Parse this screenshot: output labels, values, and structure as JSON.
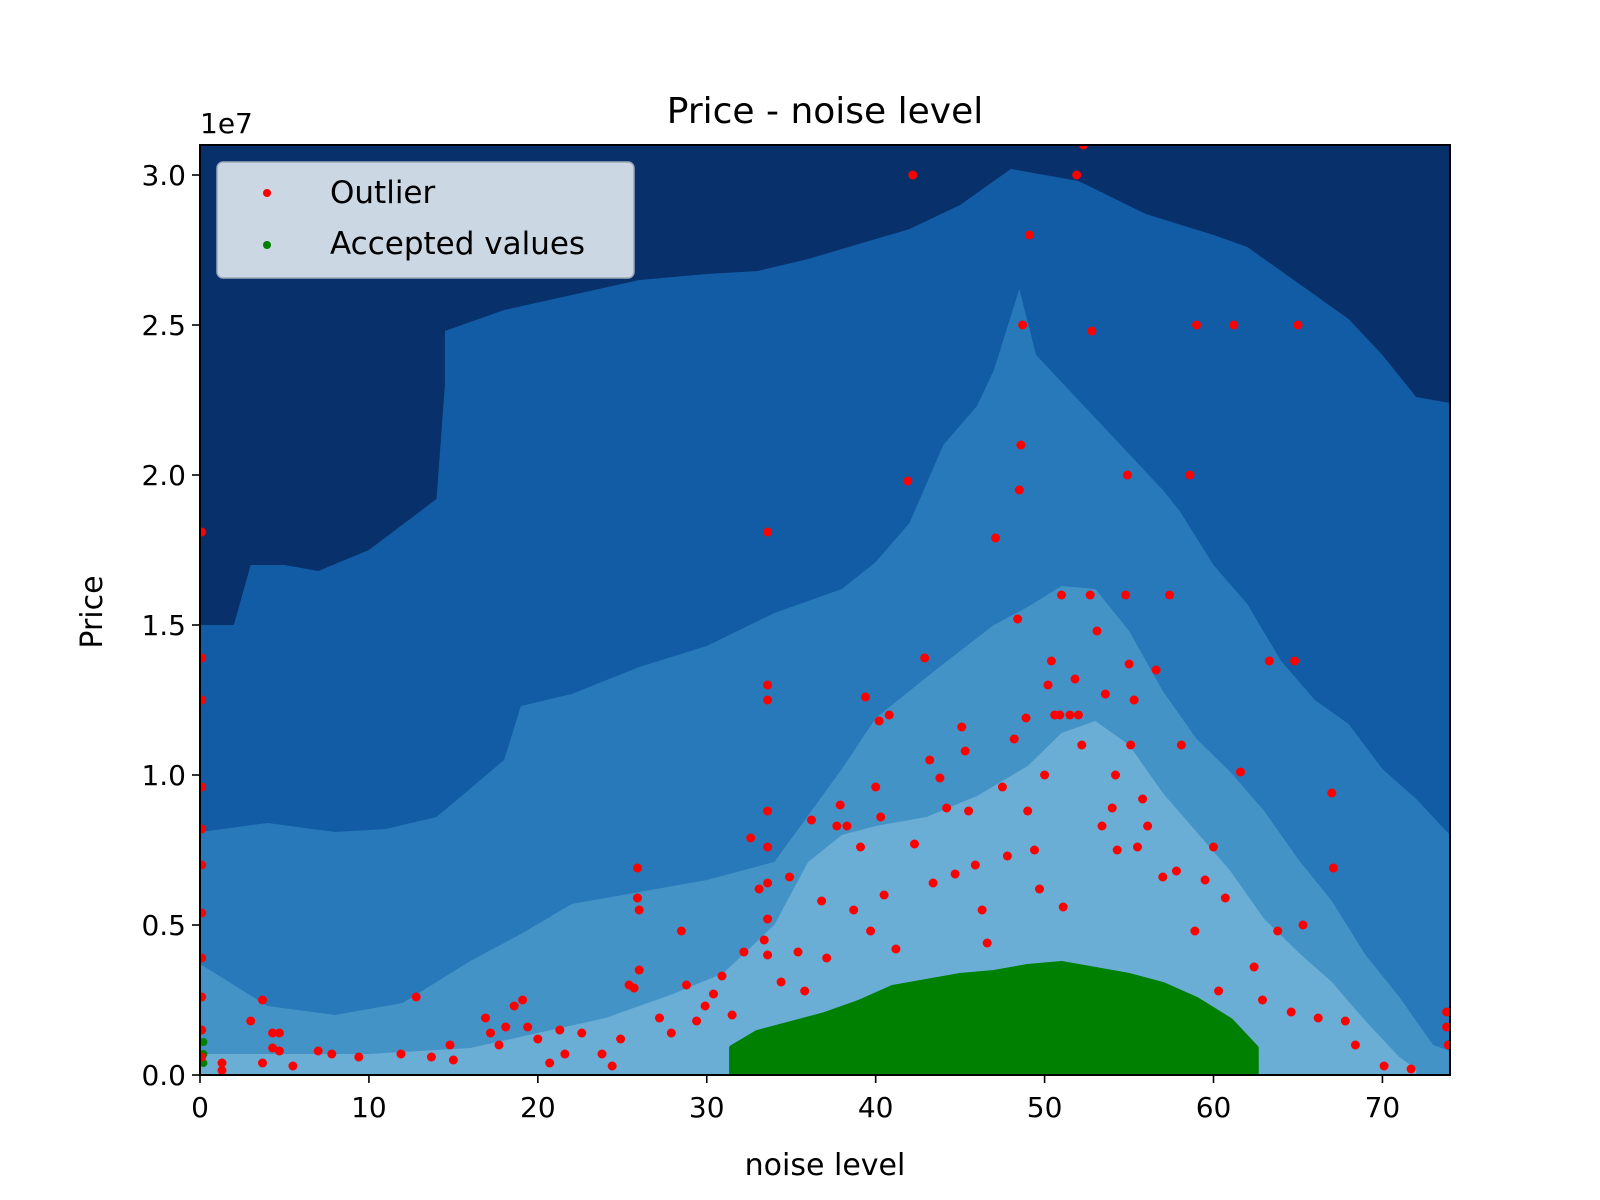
{
  "chart_data": {
    "type": "scatter",
    "title": "Price - noise level",
    "xlabel": "noise level",
    "ylabel": "Price",
    "y_offset_label": "1e7",
    "xlim": [
      0,
      74
    ],
    "ylim": [
      0,
      31000000
    ],
    "xticks": [
      0,
      10,
      20,
      30,
      40,
      50,
      60,
      70
    ],
    "xtick_labels": [
      "0",
      "10",
      "20",
      "30",
      "40",
      "50",
      "60",
      "70"
    ],
    "yticks": [
      0,
      5000000,
      10000000,
      15000000,
      20000000,
      25000000,
      30000000
    ],
    "ytick_labels": [
      "0.0",
      "0.5",
      "1.0",
      "1.5",
      "2.0",
      "2.5",
      "3.0"
    ],
    "grid": false,
    "legend_position": "top-left",
    "background": "filled density contour in blue shades",
    "contour_levels": [
      {
        "max_price": 30000000,
        "color": "#08306b"
      },
      {
        "max_price": 24000000,
        "color": "#115ca5"
      },
      {
        "max_price": 18000000,
        "color": "#2879b9"
      },
      {
        "max_price": 12000000,
        "color": "#4493c7"
      },
      {
        "max_price": 6000000,
        "color": "#6aaed6"
      }
    ],
    "series": [
      {
        "name": "Outlier",
        "color": "#ff0000",
        "points": [
          [
            0.1,
            18100000
          ],
          [
            0.1,
            13900000
          ],
          [
            0.1,
            12500000
          ],
          [
            0.1,
            9600000
          ],
          [
            0.1,
            8200000
          ],
          [
            0.1,
            7000000
          ],
          [
            0.1,
            5400000
          ],
          [
            0.1,
            3900000
          ],
          [
            0.1,
            2600000
          ],
          [
            0.1,
            1500000
          ],
          [
            0.1,
            600000
          ],
          [
            1.3,
            400000
          ],
          [
            1.3,
            150000
          ],
          [
            3.0,
            1800000
          ],
          [
            3.7,
            2500000
          ],
          [
            3.7,
            400000
          ],
          [
            4.3,
            1400000
          ],
          [
            4.3,
            900000
          ],
          [
            4.7,
            1400000
          ],
          [
            4.7,
            800000
          ],
          [
            5.5,
            300000
          ],
          [
            7.0,
            800000
          ],
          [
            7.8,
            700000
          ],
          [
            9.4,
            600000
          ],
          [
            11.9,
            700000
          ],
          [
            12.8,
            2600000
          ],
          [
            13.7,
            600000
          ],
          [
            14.8,
            1000000
          ],
          [
            15.0,
            500000
          ],
          [
            16.9,
            1900000
          ],
          [
            17.2,
            1400000
          ],
          [
            17.7,
            1000000
          ],
          [
            18.1,
            1600000
          ],
          [
            18.6,
            2300000
          ],
          [
            19.1,
            2500000
          ],
          [
            19.4,
            1600000
          ],
          [
            20.0,
            1200000
          ],
          [
            20.7,
            400000
          ],
          [
            21.3,
            1500000
          ],
          [
            21.6,
            700000
          ],
          [
            22.6,
            1400000
          ],
          [
            23.8,
            700000
          ],
          [
            24.4,
            300000
          ],
          [
            24.9,
            1200000
          ],
          [
            25.4,
            3000000
          ],
          [
            25.7,
            2900000
          ],
          [
            25.9,
            6900000
          ],
          [
            25.9,
            5900000
          ],
          [
            26.0,
            5500000
          ],
          [
            26.0,
            3500000
          ],
          [
            27.2,
            1900000
          ],
          [
            27.9,
            1400000
          ],
          [
            28.5,
            4800000
          ],
          [
            28.8,
            3000000
          ],
          [
            29.4,
            1800000
          ],
          [
            29.9,
            2300000
          ],
          [
            30.4,
            2700000
          ],
          [
            30.9,
            3300000
          ],
          [
            31.5,
            2000000
          ],
          [
            32.2,
            4100000
          ],
          [
            32.6,
            7900000
          ],
          [
            33.1,
            6200000
          ],
          [
            33.4,
            4500000
          ],
          [
            33.6,
            18100000
          ],
          [
            33.6,
            13000000
          ],
          [
            33.6,
            12500000
          ],
          [
            33.6,
            8800000
          ],
          [
            33.6,
            7600000
          ],
          [
            33.6,
            6400000
          ],
          [
            33.6,
            5200000
          ],
          [
            33.6,
            4000000
          ],
          [
            34.4,
            3100000
          ],
          [
            34.9,
            6600000
          ],
          [
            35.4,
            4100000
          ],
          [
            35.8,
            2800000
          ],
          [
            36.2,
            8500000
          ],
          [
            36.8,
            5800000
          ],
          [
            37.1,
            3900000
          ],
          [
            37.7,
            8300000
          ],
          [
            37.9,
            9000000
          ],
          [
            38.3,
            8300000
          ],
          [
            38.7,
            5500000
          ],
          [
            39.1,
            7600000
          ],
          [
            39.4,
            12600000
          ],
          [
            39.7,
            4800000
          ],
          [
            40.0,
            9600000
          ],
          [
            40.2,
            11800000
          ],
          [
            40.3,
            8600000
          ],
          [
            40.5,
            6000000
          ],
          [
            40.8,
            12000000
          ],
          [
            41.2,
            4200000
          ],
          [
            41.9,
            19800000
          ],
          [
            42.2,
            30000000
          ],
          [
            42.3,
            7700000
          ],
          [
            42.9,
            13900000
          ],
          [
            43.2,
            10500000
          ],
          [
            43.4,
            6400000
          ],
          [
            43.8,
            9900000
          ],
          [
            44.2,
            8900000
          ],
          [
            44.7,
            6700000
          ],
          [
            45.1,
            11600000
          ],
          [
            45.3,
            10800000
          ],
          [
            45.5,
            8800000
          ],
          [
            45.9,
            7000000
          ],
          [
            46.3,
            5500000
          ],
          [
            46.6,
            4400000
          ],
          [
            47.1,
            17900000
          ],
          [
            47.5,
            9600000
          ],
          [
            47.8,
            7300000
          ],
          [
            48.2,
            11200000
          ],
          [
            48.4,
            15200000
          ],
          [
            48.5,
            19500000
          ],
          [
            48.6,
            21000000
          ],
          [
            48.7,
            25000000
          ],
          [
            48.9,
            11900000
          ],
          [
            49.0,
            8800000
          ],
          [
            49.1,
            28000000
          ],
          [
            49.4,
            7500000
          ],
          [
            49.7,
            6200000
          ],
          [
            50.0,
            10000000
          ],
          [
            50.2,
            13000000
          ],
          [
            50.4,
            13800000
          ],
          [
            50.6,
            12000000
          ],
          [
            50.9,
            12000000
          ],
          [
            51.0,
            16000000
          ],
          [
            51.1,
            5600000
          ],
          [
            51.5,
            12000000
          ],
          [
            51.8,
            13200000
          ],
          [
            51.9,
            30000000
          ],
          [
            52.0,
            12000000
          ],
          [
            52.2,
            11000000
          ],
          [
            52.3,
            31000000
          ],
          [
            52.7,
            16000000
          ],
          [
            52.8,
            24800000
          ],
          [
            53.1,
            14800000
          ],
          [
            53.4,
            8300000
          ],
          [
            53.6,
            12700000
          ],
          [
            54.0,
            8900000
          ],
          [
            54.2,
            10000000
          ],
          [
            54.3,
            7500000
          ],
          [
            54.8,
            16000000
          ],
          [
            54.9,
            20000000
          ],
          [
            55.0,
            13700000
          ],
          [
            55.1,
            11000000
          ],
          [
            55.3,
            12500000
          ],
          [
            55.5,
            7600000
          ],
          [
            55.8,
            9200000
          ],
          [
            56.1,
            8300000
          ],
          [
            56.6,
            13500000
          ],
          [
            57.0,
            6600000
          ],
          [
            57.4,
            16000000
          ],
          [
            57.8,
            6800000
          ],
          [
            58.1,
            11000000
          ],
          [
            58.6,
            20000000
          ],
          [
            58.9,
            4800000
          ],
          [
            59.0,
            25000000
          ],
          [
            59.5,
            6500000
          ],
          [
            60.0,
            7600000
          ],
          [
            60.3,
            2800000
          ],
          [
            60.7,
            5900000
          ],
          [
            61.2,
            25000000
          ],
          [
            61.6,
            10100000
          ],
          [
            62.4,
            3600000
          ],
          [
            62.9,
            2500000
          ],
          [
            63.3,
            13800000
          ],
          [
            63.8,
            4800000
          ],
          [
            64.6,
            2100000
          ],
          [
            64.8,
            13800000
          ],
          [
            65.0,
            25000000
          ],
          [
            65.3,
            5000000
          ],
          [
            66.2,
            1900000
          ],
          [
            67.0,
            9400000
          ],
          [
            67.1,
            6900000
          ],
          [
            67.8,
            1800000
          ],
          [
            68.4,
            1000000
          ],
          [
            70.1,
            300000
          ],
          [
            71.7,
            200000
          ],
          [
            73.8,
            2100000
          ],
          [
            73.8,
            1600000
          ],
          [
            73.9,
            1000000
          ]
        ]
      },
      {
        "name": "Accepted values",
        "color": "#008000",
        "points": [
          [
            0.2,
            1100000
          ],
          [
            0.2,
            700000
          ],
          [
            0.2,
            400000
          ]
        ]
      }
    ],
    "accepted_envelope": {
      "x": [
        31.5,
        33,
        35,
        37,
        39,
        41,
        43,
        45,
        47,
        49,
        51,
        53,
        55,
        57,
        59,
        61,
        62.5
      ],
      "upper": [
        900000,
        1400000,
        1700000,
        2000000,
        2400000,
        2900000,
        3100000,
        3300000,
        3400000,
        3600000,
        3700000,
        3500000,
        3300000,
        3000000,
        2500000,
        1800000,
        900000
      ]
    }
  },
  "legend": {
    "outlier_label": "Outlier",
    "accepted_label": "Accepted values"
  }
}
